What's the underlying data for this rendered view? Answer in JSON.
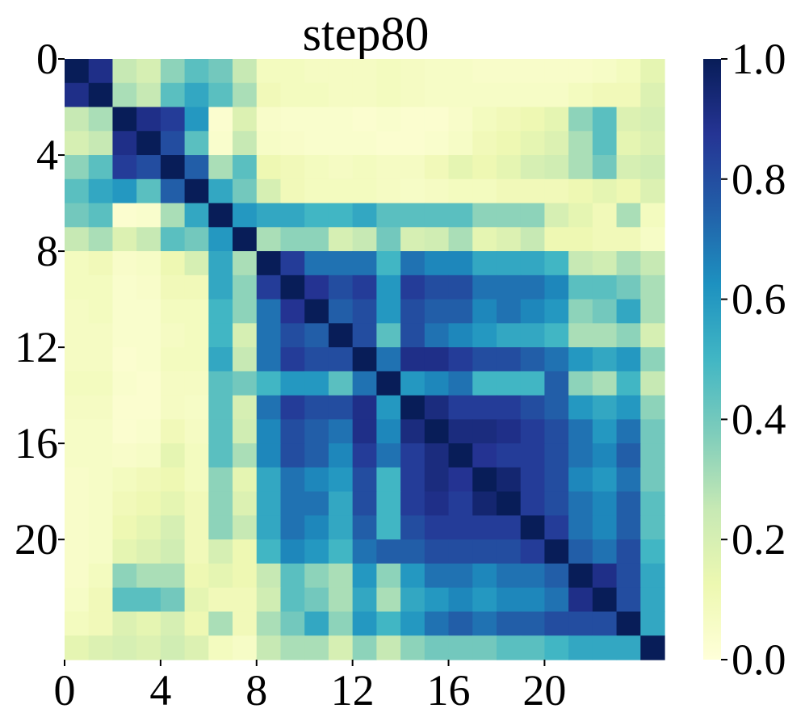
{
  "chart_data": {
    "type": "heatmap",
    "title": "step80",
    "xlabel": "",
    "ylabel": "",
    "x_tick_labels": [
      "0",
      "4",
      "8",
      "12",
      "16",
      "20"
    ],
    "y_tick_labels": [
      "0",
      "4",
      "8",
      "12",
      "16",
      "20"
    ],
    "colorbar": {
      "range": [
        0.0,
        1.0
      ],
      "tick_labels": [
        "0.0",
        "0.2",
        "0.4",
        "0.6",
        "0.8",
        "1.0"
      ],
      "colormap": "YlGnBu",
      "colors": [
        "#ffffd9",
        "#edf8b1",
        "#c7e9b4",
        "#7fcdbb",
        "#41b6c4",
        "#1d91c0",
        "#225ea8",
        "#253494",
        "#081d58"
      ]
    },
    "matrix_size": 25,
    "values": [
      [
        1.0,
        0.9,
        0.25,
        0.2,
        0.35,
        0.45,
        0.4,
        0.25,
        0.08,
        0.08,
        0.07,
        0.07,
        0.07,
        0.08,
        0.07,
        0.06,
        0.06,
        0.05,
        0.05,
        0.05,
        0.05,
        0.05,
        0.06,
        0.08,
        0.15
      ],
      [
        0.9,
        1.0,
        0.3,
        0.25,
        0.45,
        0.55,
        0.45,
        0.3,
        0.1,
        0.08,
        0.08,
        0.07,
        0.07,
        0.08,
        0.07,
        0.06,
        0.06,
        0.06,
        0.06,
        0.06,
        0.06,
        0.08,
        0.1,
        0.1,
        0.18
      ],
      [
        0.25,
        0.3,
        1.0,
        0.9,
        0.85,
        0.6,
        0.03,
        0.18,
        0.05,
        0.04,
        0.04,
        0.04,
        0.03,
        0.04,
        0.03,
        0.03,
        0.05,
        0.08,
        0.1,
        0.12,
        0.15,
        0.35,
        0.45,
        0.18,
        0.2
      ],
      [
        0.2,
        0.25,
        0.9,
        1.0,
        0.8,
        0.45,
        0.04,
        0.25,
        0.06,
        0.05,
        0.04,
        0.04,
        0.04,
        0.03,
        0.03,
        0.04,
        0.06,
        0.1,
        0.12,
        0.15,
        0.18,
        0.3,
        0.45,
        0.15,
        0.18
      ],
      [
        0.35,
        0.45,
        0.85,
        0.8,
        1.0,
        0.75,
        0.3,
        0.45,
        0.12,
        0.1,
        0.08,
        0.07,
        0.08,
        0.07,
        0.07,
        0.1,
        0.15,
        0.12,
        0.15,
        0.2,
        0.22,
        0.3,
        0.4,
        0.2,
        0.22
      ],
      [
        0.45,
        0.55,
        0.6,
        0.45,
        0.75,
        1.0,
        0.55,
        0.4,
        0.2,
        0.1,
        0.08,
        0.08,
        0.08,
        0.07,
        0.06,
        0.07,
        0.08,
        0.08,
        0.1,
        0.1,
        0.1,
        0.12,
        0.15,
        0.12,
        0.18
      ],
      [
        0.4,
        0.45,
        0.03,
        0.04,
        0.3,
        0.55,
        1.0,
        0.6,
        0.55,
        0.55,
        0.5,
        0.5,
        0.55,
        0.45,
        0.45,
        0.45,
        0.45,
        0.35,
        0.35,
        0.35,
        0.2,
        0.15,
        0.1,
        0.3,
        0.08
      ],
      [
        0.25,
        0.3,
        0.18,
        0.25,
        0.45,
        0.4,
        0.6,
        1.0,
        0.3,
        0.35,
        0.35,
        0.2,
        0.25,
        0.4,
        0.2,
        0.22,
        0.3,
        0.15,
        0.18,
        0.25,
        0.12,
        0.12,
        0.1,
        0.1,
        0.06
      ],
      [
        0.08,
        0.1,
        0.05,
        0.06,
        0.12,
        0.2,
        0.55,
        0.3,
        1.0,
        0.85,
        0.7,
        0.7,
        0.7,
        0.5,
        0.7,
        0.65,
        0.65,
        0.55,
        0.55,
        0.55,
        0.5,
        0.25,
        0.22,
        0.3,
        0.25
      ],
      [
        0.08,
        0.08,
        0.04,
        0.05,
        0.1,
        0.1,
        0.55,
        0.35,
        0.85,
        1.0,
        0.88,
        0.8,
        0.85,
        0.6,
        0.85,
        0.8,
        0.8,
        0.7,
        0.7,
        0.7,
        0.65,
        0.45,
        0.45,
        0.4,
        0.3
      ],
      [
        0.07,
        0.08,
        0.04,
        0.04,
        0.08,
        0.08,
        0.5,
        0.35,
        0.7,
        0.88,
        1.0,
        0.75,
        0.8,
        0.6,
        0.8,
        0.75,
        0.75,
        0.65,
        0.7,
        0.65,
        0.6,
        0.35,
        0.4,
        0.55,
        0.3
      ],
      [
        0.07,
        0.07,
        0.04,
        0.04,
        0.07,
        0.08,
        0.5,
        0.2,
        0.7,
        0.8,
        0.75,
        1.0,
        0.8,
        0.45,
        0.8,
        0.7,
        0.65,
        0.6,
        0.55,
        0.55,
        0.5,
        0.3,
        0.3,
        0.35,
        0.2
      ],
      [
        0.07,
        0.07,
        0.03,
        0.04,
        0.08,
        0.08,
        0.55,
        0.25,
        0.7,
        0.85,
        0.8,
        0.8,
        1.0,
        0.7,
        0.9,
        0.9,
        0.85,
        0.8,
        0.8,
        0.75,
        0.7,
        0.6,
        0.55,
        0.6,
        0.35
      ],
      [
        0.08,
        0.08,
        0.04,
        0.03,
        0.07,
        0.07,
        0.45,
        0.4,
        0.5,
        0.6,
        0.6,
        0.45,
        0.7,
        1.0,
        0.6,
        0.65,
        0.7,
        0.5,
        0.5,
        0.5,
        0.75,
        0.35,
        0.3,
        0.5,
        0.25
      ],
      [
        0.07,
        0.07,
        0.03,
        0.03,
        0.07,
        0.06,
        0.45,
        0.2,
        0.7,
        0.85,
        0.8,
        0.8,
        0.9,
        0.6,
        1.0,
        0.92,
        0.85,
        0.85,
        0.85,
        0.8,
        0.75,
        0.6,
        0.55,
        0.6,
        0.35
      ],
      [
        0.06,
        0.06,
        0.03,
        0.04,
        0.1,
        0.07,
        0.45,
        0.22,
        0.65,
        0.8,
        0.75,
        0.7,
        0.9,
        0.65,
        0.92,
        1.0,
        0.92,
        0.92,
        0.9,
        0.85,
        0.8,
        0.7,
        0.6,
        0.7,
        0.4
      ],
      [
        0.06,
        0.06,
        0.05,
        0.06,
        0.15,
        0.08,
        0.45,
        0.3,
        0.65,
        0.8,
        0.75,
        0.65,
        0.85,
        0.7,
        0.85,
        0.92,
        1.0,
        0.88,
        0.85,
        0.85,
        0.8,
        0.7,
        0.65,
        0.75,
        0.4
      ],
      [
        0.05,
        0.06,
        0.08,
        0.1,
        0.12,
        0.08,
        0.35,
        0.15,
        0.55,
        0.7,
        0.65,
        0.6,
        0.8,
        0.5,
        0.85,
        0.92,
        0.88,
        1.0,
        0.95,
        0.85,
        0.8,
        0.65,
        0.6,
        0.7,
        0.4
      ],
      [
        0.05,
        0.06,
        0.1,
        0.12,
        0.15,
        0.1,
        0.35,
        0.18,
        0.55,
        0.7,
        0.7,
        0.55,
        0.8,
        0.5,
        0.85,
        0.9,
        0.85,
        0.95,
        1.0,
        0.85,
        0.8,
        0.7,
        0.65,
        0.75,
        0.45
      ],
      [
        0.05,
        0.06,
        0.12,
        0.15,
        0.2,
        0.1,
        0.35,
        0.25,
        0.55,
        0.7,
        0.65,
        0.55,
        0.75,
        0.5,
        0.8,
        0.85,
        0.85,
        0.85,
        0.85,
        1.0,
        0.85,
        0.7,
        0.65,
        0.75,
        0.45
      ],
      [
        0.05,
        0.06,
        0.15,
        0.18,
        0.22,
        0.1,
        0.2,
        0.12,
        0.5,
        0.65,
        0.6,
        0.5,
        0.7,
        0.75,
        0.75,
        0.8,
        0.8,
        0.8,
        0.8,
        0.85,
        1.0,
        0.75,
        0.7,
        0.8,
        0.5
      ],
      [
        0.05,
        0.08,
        0.35,
        0.3,
        0.3,
        0.12,
        0.15,
        0.12,
        0.25,
        0.45,
        0.35,
        0.3,
        0.6,
        0.35,
        0.6,
        0.7,
        0.7,
        0.65,
        0.7,
        0.7,
        0.75,
        1.0,
        0.9,
        0.8,
        0.55
      ],
      [
        0.06,
        0.1,
        0.45,
        0.45,
        0.4,
        0.15,
        0.1,
        0.1,
        0.22,
        0.45,
        0.4,
        0.3,
        0.55,
        0.3,
        0.55,
        0.6,
        0.65,
        0.6,
        0.65,
        0.65,
        0.7,
        0.9,
        1.0,
        0.8,
        0.55
      ],
      [
        0.08,
        0.1,
        0.18,
        0.15,
        0.2,
        0.12,
        0.3,
        0.1,
        0.3,
        0.4,
        0.55,
        0.35,
        0.6,
        0.5,
        0.6,
        0.7,
        0.75,
        0.7,
        0.75,
        0.75,
        0.8,
        0.8,
        0.8,
        1.0,
        0.55
      ],
      [
        0.15,
        0.18,
        0.2,
        0.18,
        0.22,
        0.18,
        0.08,
        0.06,
        0.25,
        0.3,
        0.3,
        0.2,
        0.35,
        0.25,
        0.35,
        0.4,
        0.4,
        0.4,
        0.45,
        0.45,
        0.5,
        0.55,
        0.55,
        0.55,
        1.0
      ]
    ]
  }
}
